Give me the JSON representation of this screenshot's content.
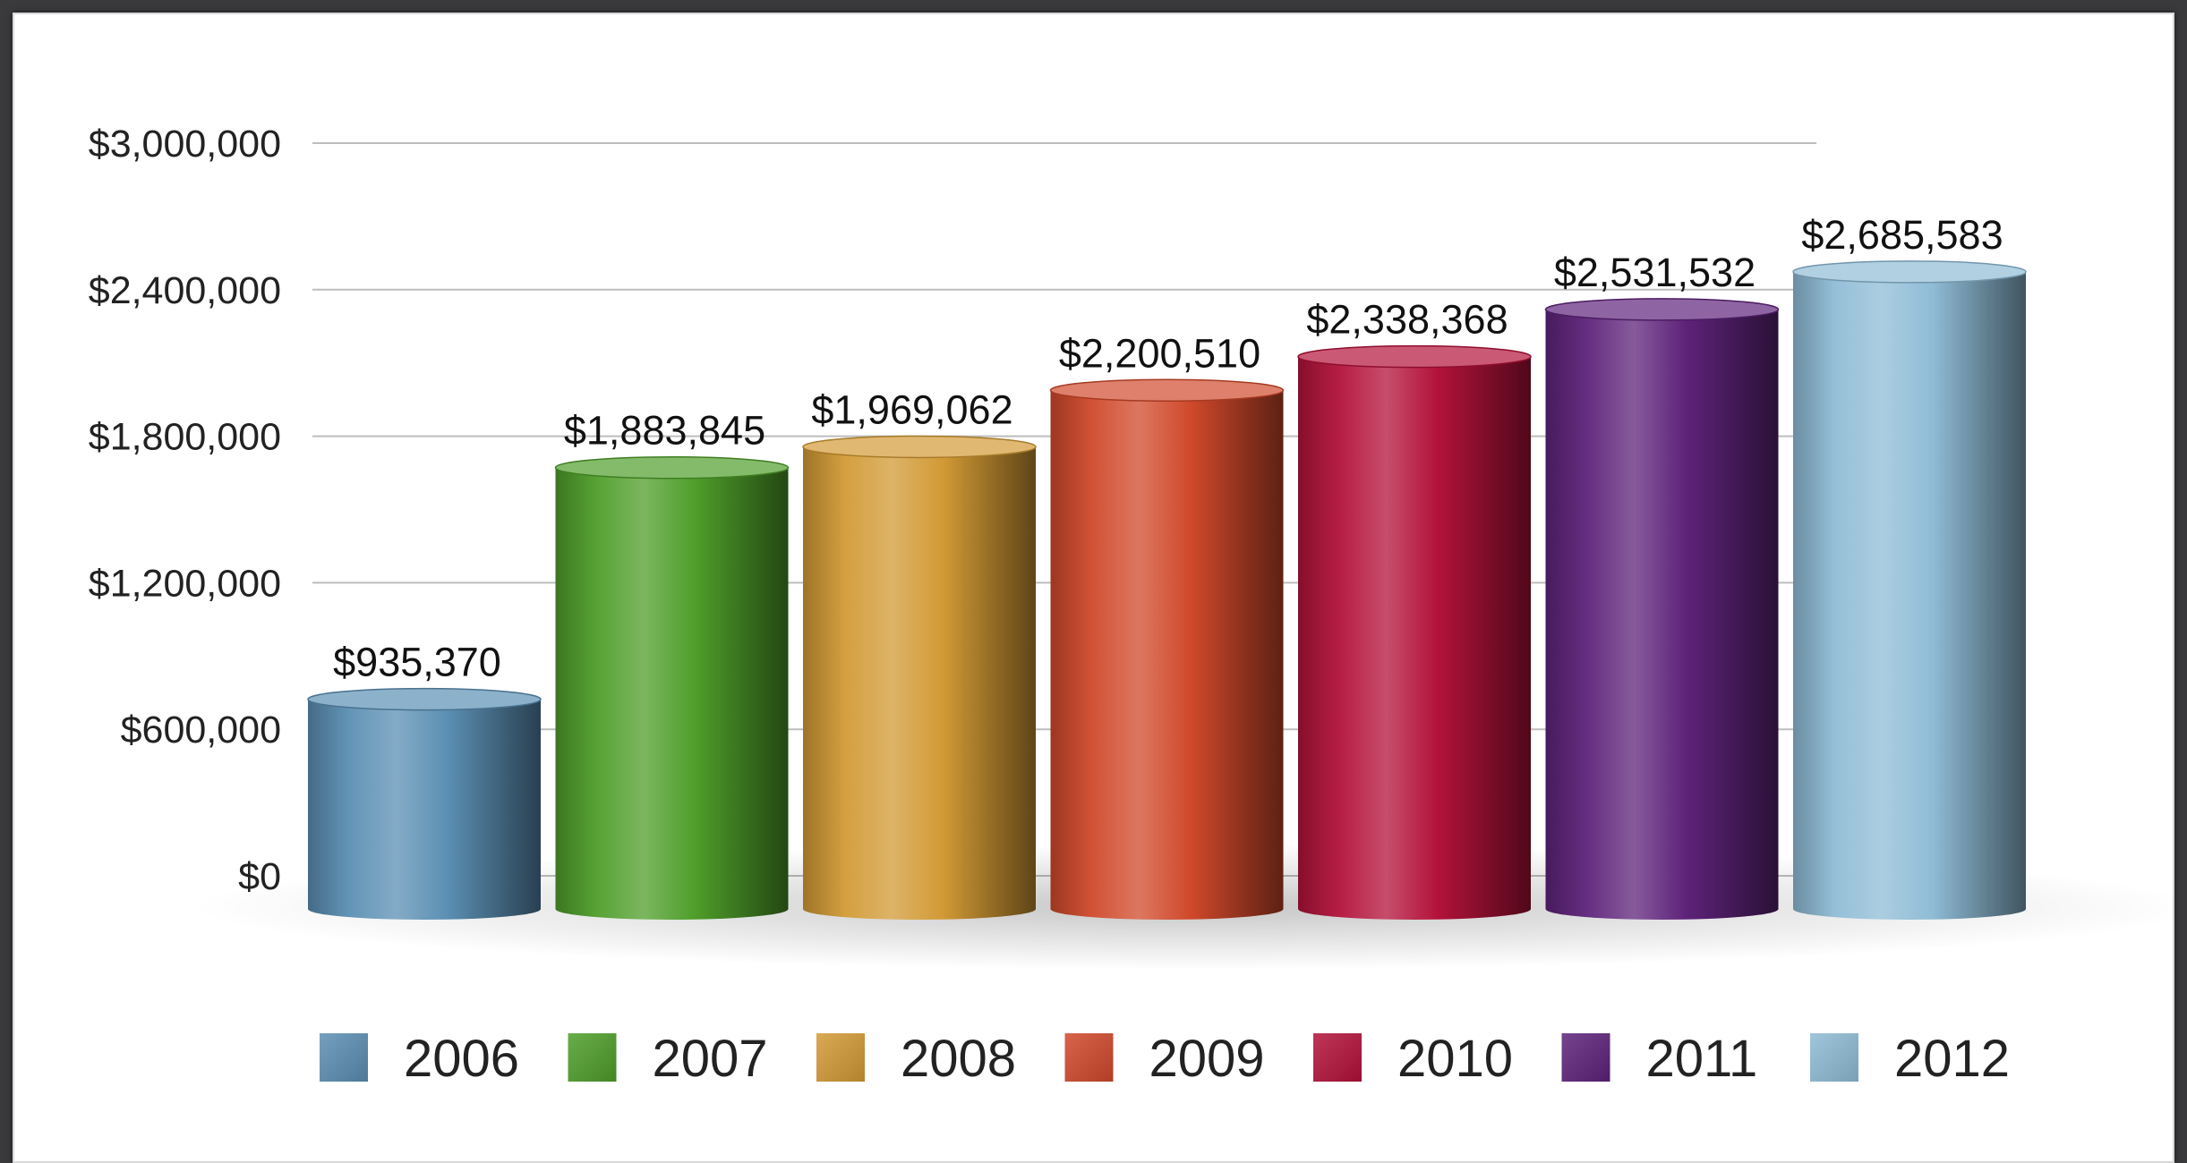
{
  "chart_data": {
    "type": "bar",
    "title": "",
    "xlabel": "",
    "ylabel": "",
    "ylim": [
      0,
      3000000
    ],
    "yticks": [
      0,
      600000,
      1200000,
      1800000,
      2400000,
      3000000
    ],
    "ytick_labels": [
      "$0",
      "$600,000",
      "$1,200,000",
      "$1,800,000",
      "$2,400,000",
      "$3,000,000"
    ],
    "grid": true,
    "legend_position": "bottom",
    "categories": [
      "2006",
      "2007",
      "2008",
      "2009",
      "2010",
      "2011",
      "2012"
    ],
    "values": [
      935370,
      1883845,
      1969062,
      2200510,
      2338368,
      2531532,
      2685583
    ],
    "data_labels": [
      "$935,370",
      "$1,883,845",
      "$1,969,062",
      "$2,200,510",
      "$2,338,368",
      "$2,531,532",
      "$2,685,583"
    ],
    "colors": [
      "#5b8fb3",
      "#4f9e2a",
      "#d29a35",
      "#d0492b",
      "#b3123a",
      "#5e237a",
      "#8fbcd6"
    ]
  }
}
